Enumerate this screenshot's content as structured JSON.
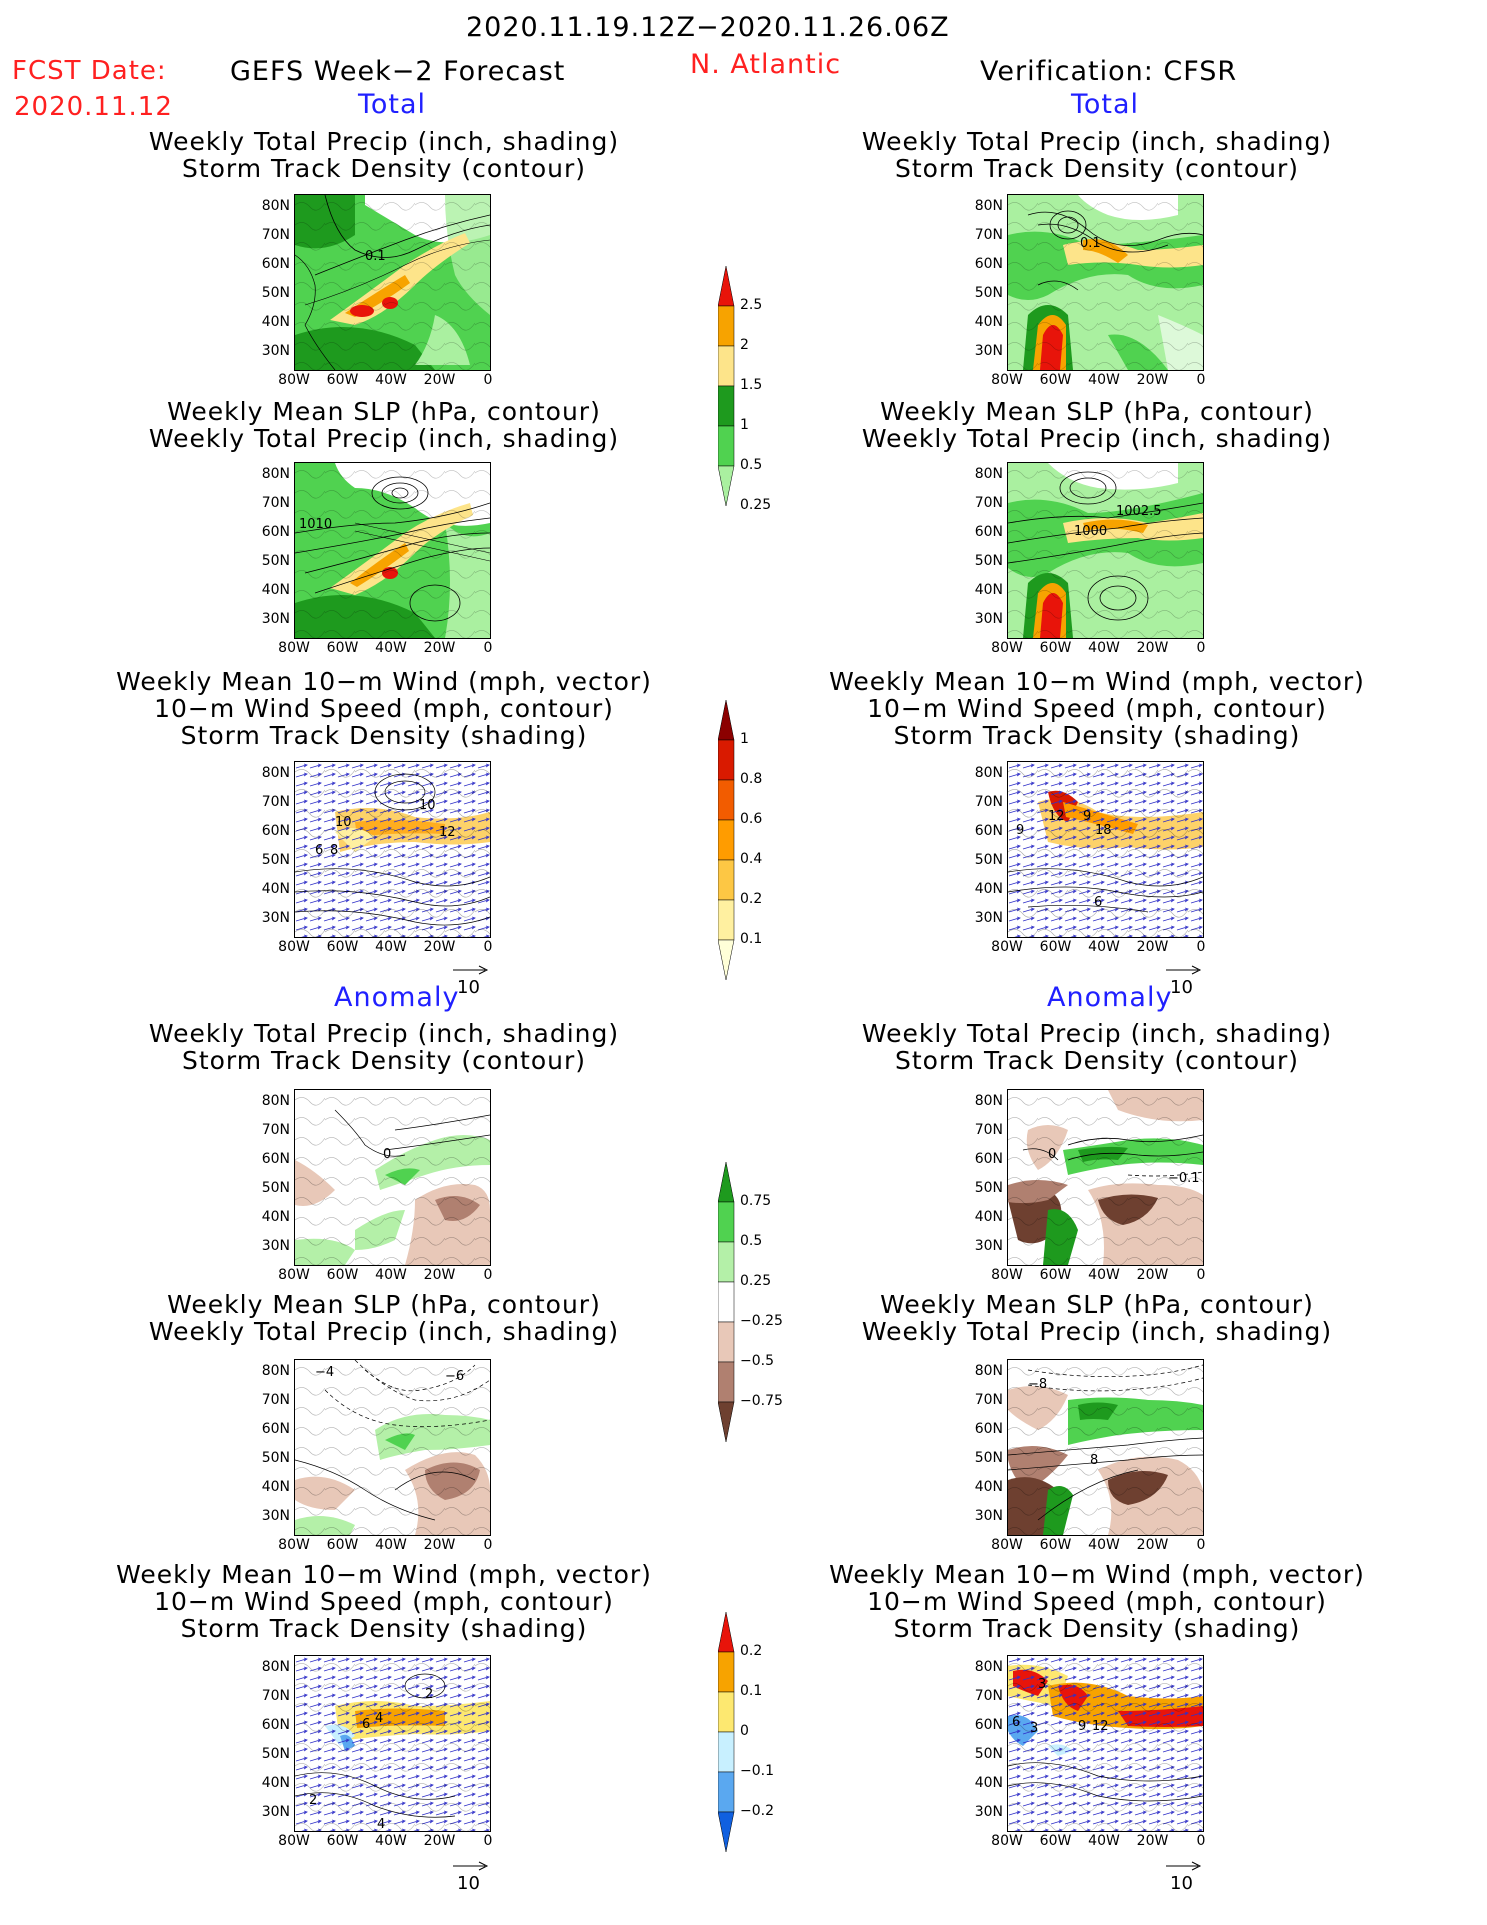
{
  "header": {
    "date_range": "2020.11.19.12Z−2020.11.26.06Z",
    "fcst_label": "FCST Date:",
    "fcst_date": "2020.11.12",
    "left_title": "GEFS Week−2 Forecast",
    "region": "N. Atlantic",
    "right_title": "Verification: CFSR",
    "colors": {
      "red": "#ff2020",
      "blue": "#2020ff"
    }
  },
  "sections": {
    "total": "Total",
    "anomaly": "Anomaly"
  },
  "panel_titles": {
    "precip_track": [
      "Weekly Total Precip (inch, shading)",
      "Storm Track Density (contour)"
    ],
    "slp_precip": [
      "Weekly Mean SLP (hPa, contour)",
      "Weekly Total Precip (inch, shading)"
    ],
    "wind_track": [
      "Weekly Mean 10−m Wind (mph, vector)",
      "10−m Wind Speed (mph, contour)",
      "Storm Track Density (shading)"
    ]
  },
  "axes": {
    "lat": [
      "80N",
      "70N",
      "60N",
      "50N",
      "40N",
      "30N"
    ],
    "lon": [
      "80W",
      "60W",
      "40W",
      "20W",
      "0"
    ]
  },
  "vector_ref": "10",
  "colorbars": {
    "precip_total": {
      "labels": [
        "2.5",
        "2",
        "1.5",
        "1",
        "0.5",
        "0.25"
      ],
      "colors": [
        "#e8140a",
        "#f7a300",
        "#fde48a",
        "#1e9a1e",
        "#50d250",
        "#aaf0a0"
      ]
    },
    "track_total": {
      "labels": [
        "1",
        "0.8",
        "0.6",
        "0.4",
        "0.2",
        "0.1"
      ],
      "colors": [
        "#8b0000",
        "#d91a00",
        "#f25c00",
        "#ff9c00",
        "#fdc744",
        "#fff0a0",
        "#ffffd8"
      ]
    },
    "precip_anom": {
      "labels": [
        "0.75",
        "0.5",
        "0.25",
        "−0.25",
        "−0.5",
        "−0.75"
      ],
      "colors": [
        "#1e9a1e",
        "#50d250",
        "#b4f0a8",
        "#ffffff",
        "#e8c8b8",
        "#b08070",
        "#6e4030"
      ]
    },
    "track_anom": {
      "labels": [
        "0.2",
        "0.1",
        "0",
        "−0.1",
        "−0.2"
      ],
      "colors": [
        "#e8140a",
        "#f7a300",
        "#fde870",
        "#c8f0ff",
        "#5aa8f0",
        "#1060e0"
      ]
    }
  },
  "contour_labels": {
    "L1": "0.1",
    "R1": "0.1",
    "L2": "1010",
    "R2a": "1002.5",
    "R2b": "1000",
    "L3a": "10",
    "L3b": "10",
    "L3c": "12",
    "L3d": "6",
    "L3e": "8",
    "R3a": "12",
    "R3b": "9",
    "R3c": "18",
    "R3d": "9",
    "R3e": "6",
    "L4": "0",
    "R4a": "0",
    "R4b": "−0.1",
    "L5a": "−4",
    "L5b": "−6",
    "R5a": "−8",
    "R5b": "8",
    "L6a": "6",
    "L6b": "4",
    "L6c": "2",
    "L6d": "2",
    "L6e": "4",
    "R6a": "3",
    "R6b": "6",
    "R6c": "3",
    "R6d": "9",
    "R6e": "12"
  }
}
